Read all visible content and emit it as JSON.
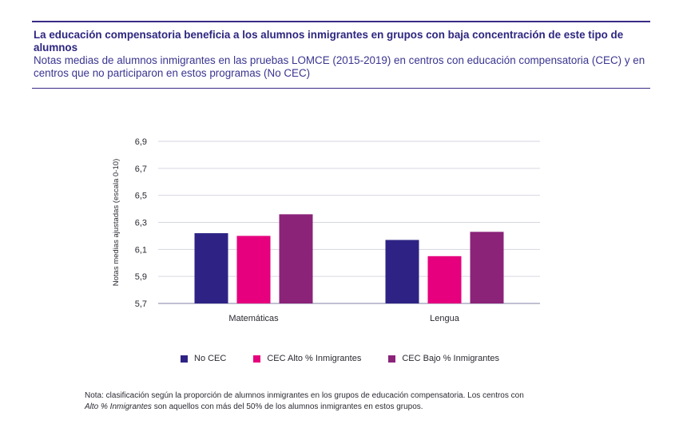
{
  "header": {
    "title": "La educación compensatoria beneficia a los alumnos inmigrantes en grupos con baja concentración de este tipo de alumnos",
    "subtitle": "Notas medias de alumnos inmigrantes en las pruebas LOMCE (2015-2019) en centros con educación compensatoria (CEC) y en centros que no participaron en estos programas (No CEC)"
  },
  "chart_data": {
    "type": "bar",
    "categories": [
      "Matemáticas",
      "Lengua"
    ],
    "series": [
      {
        "name": "No CEC",
        "values": [
          6.22,
          6.17
        ],
        "color": "#2e2384"
      },
      {
        "name": "CEC Alto % Inmigrantes",
        "values": [
          6.2,
          6.05
        ],
        "color": "#e6007e"
      },
      {
        "name": "CEC Bajo % Inmigrantes",
        "values": [
          6.36,
          6.23
        ],
        "color": "#8b2379"
      }
    ],
    "ylabel": "Notas medias ajustadas (escala 0-10)",
    "ylim": [
      5.7,
      6.9
    ],
    "yticks": [
      "5,7",
      "5,9",
      "6,1",
      "6,3",
      "6,5",
      "6,7",
      "6,9"
    ],
    "grid": true,
    "legend_position": "bottom"
  },
  "note": {
    "prefix": "Nota: clasificación según la proporción de alumnos inmigrantes en los grupos de educación compensatoria. Los centros con",
    "emphasis": "Alto % Inmigrantes",
    "suffix": " son aquellos con más del 50% de los alumnos inmigrantes en estos grupos."
  }
}
